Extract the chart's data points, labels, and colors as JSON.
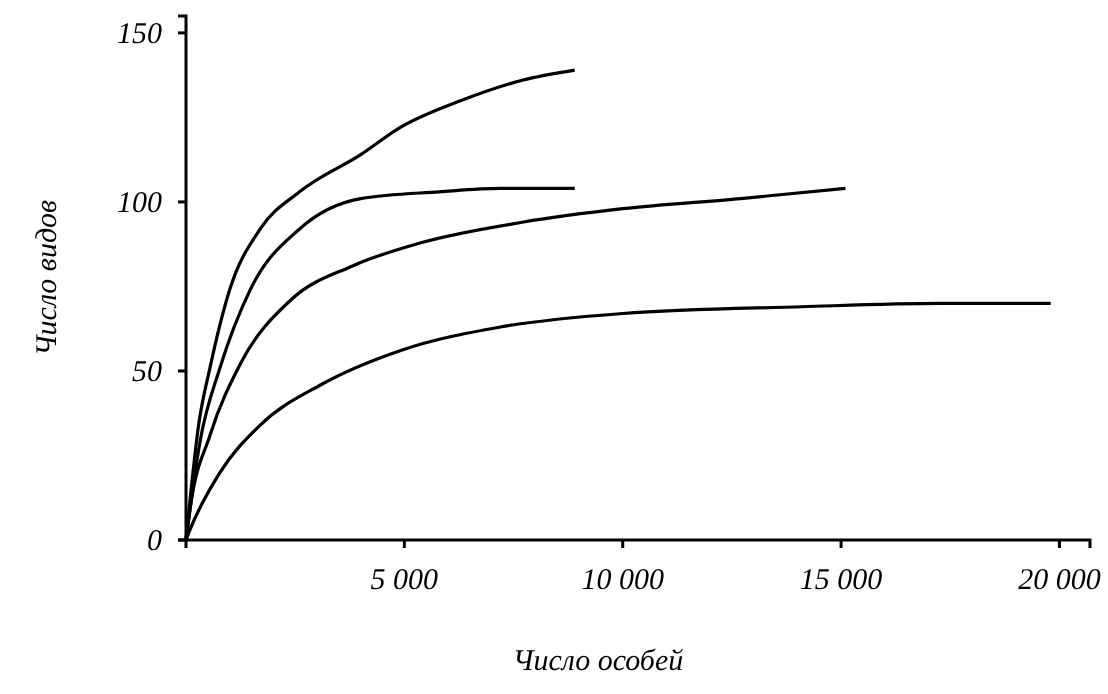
{
  "chart_data": {
    "type": "line",
    "xlabel": "Число особей",
    "ylabel": "Число видов",
    "xlim": [
      0,
      20700
    ],
    "ylim": [
      0,
      155
    ],
    "xticks": [
      {
        "value": 5000,
        "label": "5 000"
      },
      {
        "value": 10000,
        "label": "10 000"
      },
      {
        "value": 15000,
        "label": "15 000"
      },
      {
        "value": 20000,
        "label": "20 000"
      }
    ],
    "yticks": [
      0,
      50,
      100,
      150
    ],
    "grid": false,
    "marker": "none",
    "line_style": "solid",
    "series": [
      {
        "color": "#000000",
        "x": [
          0,
          300,
          550,
          1000,
          1700,
          2600,
          4000,
          4900,
          6300,
          7700,
          8900
        ],
        "values": [
          0,
          35,
          51,
          74,
          92,
          103,
          114,
          122,
          130,
          136,
          139
        ]
      },
      {
        "color": "#000000",
        "x": [
          0,
          320,
          780,
          1470,
          2600,
          4000,
          5800,
          7200,
          8900
        ],
        "values": [
          0,
          29,
          51,
          74,
          92,
          101,
          103,
          104,
          104
        ]
      },
      {
        "color": "#000000",
        "x": [
          0,
          90,
          550,
          1240,
          2400,
          3800,
          5400,
          7700,
          10000,
          12700,
          15100
        ],
        "values": [
          0,
          9,
          31,
          52,
          71,
          81,
          88,
          94,
          98,
          101,
          104
        ]
      },
      {
        "color": "#000000",
        "x": [
          0,
          90,
          780,
          1700,
          3100,
          4900,
          7200,
          10000,
          14100,
          17300,
          19800
        ],
        "values": [
          0,
          3,
          20,
          34,
          46,
          56,
          63,
          67,
          69,
          70,
          70
        ]
      }
    ]
  }
}
